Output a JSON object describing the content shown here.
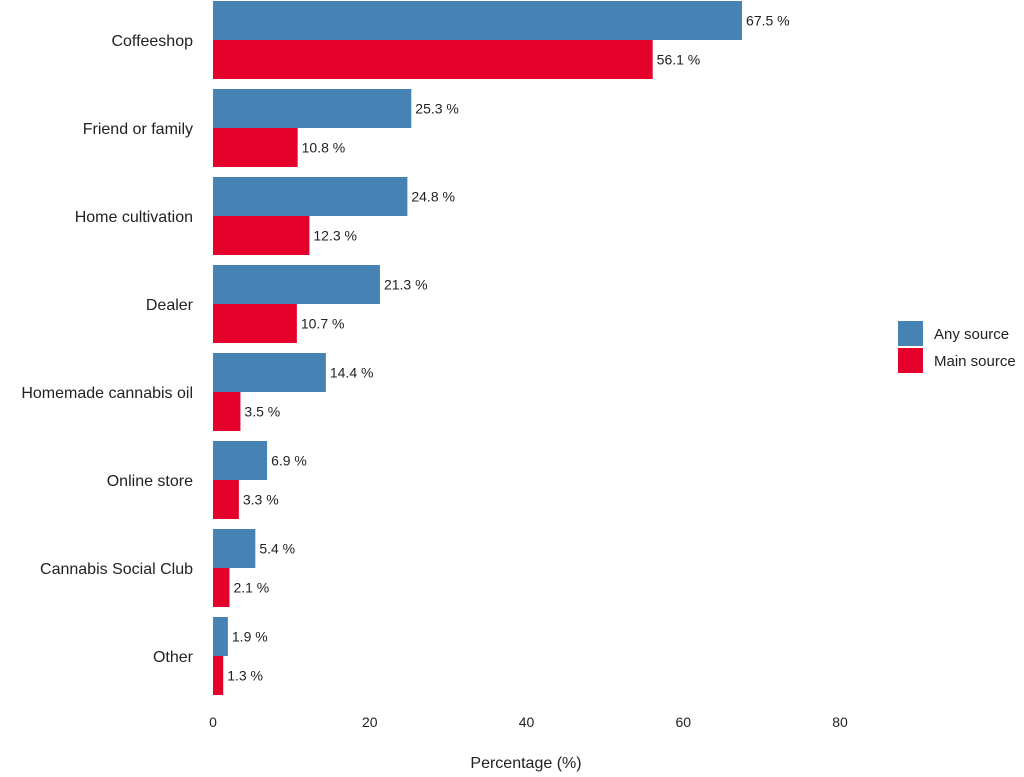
{
  "chart_data": {
    "type": "bar",
    "orientation": "horizontal",
    "title": "",
    "xlabel": "Percentage (%)",
    "ylabel": "",
    "xlim": [
      0,
      80
    ],
    "xticks": [
      0,
      20,
      40,
      60,
      80
    ],
    "grid": false,
    "legend_position": "right",
    "categories": [
      "Coffeeshop",
      "Friend or family",
      "Home cultivation",
      "Dealer",
      "Homemade cannabis oil",
      "Online store",
      "Cannabis Social Club",
      "Other"
    ],
    "series": [
      {
        "name": "Any source",
        "color": "#4682B4",
        "values": [
          67.5,
          25.3,
          24.8,
          21.3,
          14.4,
          6.9,
          5.4,
          1.9
        ]
      },
      {
        "name": "Main source",
        "color": "#E4002B",
        "values": [
          56.1,
          10.8,
          12.3,
          10.7,
          3.5,
          3.3,
          2.1,
          1.3
        ]
      }
    ],
    "label_suffix": " %"
  }
}
